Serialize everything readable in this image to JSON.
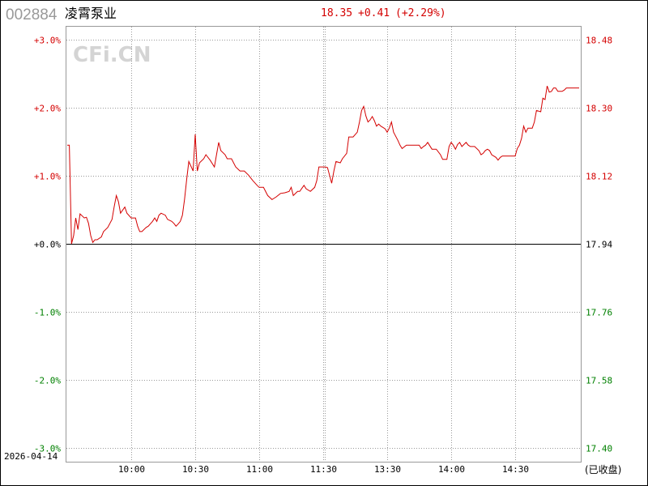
{
  "header": {
    "code": "002884",
    "name": "凌霄泵业",
    "price": "18.35",
    "change": "+0.41",
    "change_pct": "(+2.29%)"
  },
  "watermark": "CFi.CN",
  "date": "2026-04-14",
  "status": "(已收盘)",
  "colors": {
    "up": "#d40000",
    "down": "#008000",
    "zero": "#000000",
    "line": "#d40000",
    "grid": "#999999",
    "watermark": "#d4d4d4"
  },
  "chart_data": {
    "type": "line",
    "prev_close": 17.94,
    "ylim_pct": [
      -3.0,
      3.0
    ],
    "ylim_price": [
      17.4,
      18.48
    ],
    "grid": true,
    "left_ticks": [
      {
        "label": "+3.0%",
        "value": 3,
        "color": "up"
      },
      {
        "label": "+2.0%",
        "value": 2,
        "color": "up"
      },
      {
        "label": "+1.0%",
        "value": 1,
        "color": "up"
      },
      {
        "label": "+0.0%",
        "value": 0,
        "color": "zero"
      },
      {
        "label": "-1.0%",
        "value": -1,
        "color": "down"
      },
      {
        "label": "-2.0%",
        "value": -2,
        "color": "down"
      },
      {
        "label": "-3.0%",
        "value": -3,
        "color": "down"
      }
    ],
    "right_ticks": [
      {
        "label": "18.48",
        "value": 3,
        "color": "up"
      },
      {
        "label": "18.30",
        "value": 2,
        "color": "up"
      },
      {
        "label": "18.12",
        "value": 1,
        "color": "up"
      },
      {
        "label": "17.94",
        "value": 0,
        "color": "zero"
      },
      {
        "label": "17.76",
        "value": -1,
        "color": "down"
      },
      {
        "label": "17.58",
        "value": -2,
        "color": "down"
      },
      {
        "label": "17.40",
        "value": -3,
        "color": "down"
      }
    ],
    "x_ticks": [
      "10:00",
      "10:30",
      "11:00",
      "11:30",
      "13:30",
      "14:00",
      "14:30"
    ],
    "session": {
      "am": [
        "09:30",
        "11:30"
      ],
      "pm": [
        "13:00",
        "15:00"
      ]
    },
    "series": [
      {
        "unit": "pct",
        "points": [
          [
            "09:30",
            1.45
          ],
          [
            "09:31",
            1.45
          ],
          [
            "09:32",
            0.0
          ],
          [
            "09:33",
            0.12
          ],
          [
            "09:34",
            0.38
          ],
          [
            "09:35",
            0.21
          ],
          [
            "09:36",
            0.44
          ],
          [
            "09:38",
            0.38
          ],
          [
            "09:39",
            0.39
          ],
          [
            "09:40",
            0.3
          ],
          [
            "09:41",
            0.12
          ],
          [
            "09:42",
            0.02
          ],
          [
            "09:43",
            0.06
          ],
          [
            "09:44",
            0.06
          ],
          [
            "09:46",
            0.1
          ],
          [
            "09:47",
            0.18
          ],
          [
            "09:49",
            0.24
          ],
          [
            "09:51",
            0.36
          ],
          [
            "09:52",
            0.54
          ],
          [
            "09:53",
            0.71
          ],
          [
            "09:54",
            0.62
          ],
          [
            "09:55",
            0.45
          ],
          [
            "09:57",
            0.54
          ],
          [
            "09:58",
            0.45
          ],
          [
            "10:00",
            0.38
          ],
          [
            "10:02",
            0.38
          ],
          [
            "10:03",
            0.26
          ],
          [
            "10:04",
            0.18
          ],
          [
            "10:05",
            0.18
          ],
          [
            "10:07",
            0.24
          ],
          [
            "10:08",
            0.26
          ],
          [
            "10:10",
            0.33
          ],
          [
            "10:11",
            0.38
          ],
          [
            "10:12",
            0.33
          ],
          [
            "10:13",
            0.42
          ],
          [
            "10:14",
            0.45
          ],
          [
            "10:16",
            0.42
          ],
          [
            "10:17",
            0.36
          ],
          [
            "10:19",
            0.33
          ],
          [
            "10:20",
            0.3
          ],
          [
            "10:21",
            0.26
          ],
          [
            "10:22",
            0.29
          ],
          [
            "10:23",
            0.33
          ],
          [
            "10:24",
            0.42
          ],
          [
            "10:25",
            0.65
          ],
          [
            "10:26",
            0.95
          ],
          [
            "10:27",
            1.21
          ],
          [
            "10:29",
            1.07
          ],
          [
            "10:30",
            1.61
          ],
          [
            "10:31",
            1.07
          ],
          [
            "10:32",
            1.19
          ],
          [
            "10:34",
            1.25
          ],
          [
            "10:35",
            1.31
          ],
          [
            "10:37",
            1.23
          ],
          [
            "10:39",
            1.13
          ],
          [
            "10:40",
            1.31
          ],
          [
            "10:41",
            1.49
          ],
          [
            "10:42",
            1.37
          ],
          [
            "10:44",
            1.31
          ],
          [
            "10:45",
            1.25
          ],
          [
            "10:47",
            1.25
          ],
          [
            "10:49",
            1.13
          ],
          [
            "10:51",
            1.07
          ],
          [
            "10:53",
            1.07
          ],
          [
            "10:55",
            1.01
          ],
          [
            "10:57",
            0.93
          ],
          [
            "10:59",
            0.86
          ],
          [
            "11:00",
            0.83
          ],
          [
            "11:02",
            0.83
          ],
          [
            "11:04",
            0.71
          ],
          [
            "11:06",
            0.65
          ],
          [
            "11:08",
            0.69
          ],
          [
            "11:10",
            0.74
          ],
          [
            "11:12",
            0.75
          ],
          [
            "11:14",
            0.77
          ],
          [
            "11:15",
            0.83
          ],
          [
            "11:16",
            0.71
          ],
          [
            "11:18",
            0.77
          ],
          [
            "11:19",
            0.77
          ],
          [
            "11:21",
            0.86
          ],
          [
            "11:22",
            0.81
          ],
          [
            "11:24",
            0.77
          ],
          [
            "11:26",
            0.83
          ],
          [
            "11:27",
            0.93
          ],
          [
            "11:28",
            1.13
          ],
          [
            "11:29",
            1.13
          ],
          [
            "11:30",
            1.13
          ],
          [
            "13:01",
            1.13
          ],
          [
            "13:02",
            1.12
          ],
          [
            "13:04",
            0.89
          ],
          [
            "13:05",
            1.07
          ],
          [
            "13:06",
            1.21
          ],
          [
            "13:08",
            1.19
          ],
          [
            "13:09",
            1.25
          ],
          [
            "13:11",
            1.33
          ],
          [
            "13:12",
            1.57
          ],
          [
            "13:14",
            1.57
          ],
          [
            "13:16",
            1.64
          ],
          [
            "13:17",
            1.79
          ],
          [
            "13:18",
            1.96
          ],
          [
            "13:19",
            2.02
          ],
          [
            "13:20",
            1.88
          ],
          [
            "13:21",
            1.79
          ],
          [
            "13:22",
            1.82
          ],
          [
            "13:23",
            1.87
          ],
          [
            "13:24",
            1.81
          ],
          [
            "13:25",
            1.73
          ],
          [
            "13:26",
            1.76
          ],
          [
            "13:27",
            1.73
          ],
          [
            "13:29",
            1.69
          ],
          [
            "13:30",
            1.64
          ],
          [
            "13:31",
            1.7
          ],
          [
            "13:32",
            1.79
          ],
          [
            "13:33",
            1.64
          ],
          [
            "13:35",
            1.52
          ],
          [
            "13:36",
            1.45
          ],
          [
            "13:37",
            1.4
          ],
          [
            "13:39",
            1.45
          ],
          [
            "13:41",
            1.45
          ],
          [
            "13:43",
            1.45
          ],
          [
            "13:45",
            1.45
          ],
          [
            "13:46",
            1.4
          ],
          [
            "13:47",
            1.43
          ],
          [
            "13:48",
            1.45
          ],
          [
            "13:49",
            1.49
          ],
          [
            "13:51",
            1.39
          ],
          [
            "13:53",
            1.39
          ],
          [
            "13:55",
            1.31
          ],
          [
            "13:56",
            1.24
          ],
          [
            "13:58",
            1.24
          ],
          [
            "13:59",
            1.43
          ],
          [
            "14:00",
            1.49
          ],
          [
            "14:01",
            1.45
          ],
          [
            "14:02",
            1.39
          ],
          [
            "14:03",
            1.46
          ],
          [
            "14:04",
            1.49
          ],
          [
            "14:05",
            1.43
          ],
          [
            "14:07",
            1.49
          ],
          [
            "14:08",
            1.45
          ],
          [
            "14:09",
            1.43
          ],
          [
            "14:11",
            1.43
          ],
          [
            "14:13",
            1.37
          ],
          [
            "14:14",
            1.31
          ],
          [
            "14:15",
            1.33
          ],
          [
            "14:16",
            1.37
          ],
          [
            "14:17",
            1.39
          ],
          [
            "14:18",
            1.37
          ],
          [
            "14:19",
            1.31
          ],
          [
            "14:21",
            1.27
          ],
          [
            "14:22",
            1.23
          ],
          [
            "14:23",
            1.27
          ],
          [
            "14:24",
            1.29
          ],
          [
            "14:28",
            1.29
          ],
          [
            "14:30",
            1.29
          ],
          [
            "14:31",
            1.4
          ],
          [
            "14:32",
            1.45
          ],
          [
            "14:33",
            1.55
          ],
          [
            "14:34",
            1.73
          ],
          [
            "14:35",
            1.64
          ],
          [
            "14:36",
            1.7
          ],
          [
            "14:38",
            1.7
          ],
          [
            "14:39",
            1.79
          ],
          [
            "14:40",
            1.96
          ],
          [
            "14:42",
            1.94
          ],
          [
            "14:43",
            2.14
          ],
          [
            "14:44",
            2.12
          ],
          [
            "14:45",
            2.32
          ],
          [
            "14:46",
            2.23
          ],
          [
            "14:47",
            2.24
          ],
          [
            "14:48",
            2.29
          ],
          [
            "14:49",
            2.29
          ],
          [
            "14:50",
            2.24
          ],
          [
            "14:52",
            2.24
          ],
          [
            "14:53",
            2.26
          ],
          [
            "14:54",
            2.29
          ],
          [
            "15:00",
            2.29
          ]
        ]
      }
    ]
  }
}
